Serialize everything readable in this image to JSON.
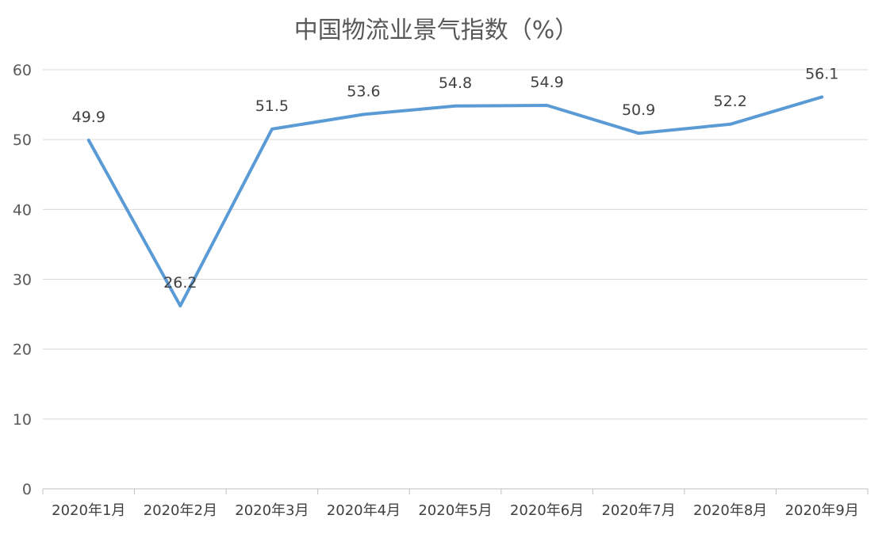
{
  "chart_data": {
    "type": "line",
    "title": "中国物流业景气指数（%）",
    "categories": [
      "2020年1月",
      "2020年2月",
      "2020年3月",
      "2020年4月",
      "2020年5月",
      "2020年6月",
      "2020年7月",
      "2020年8月",
      "2020年9月"
    ],
    "series": [
      {
        "values": [
          49.9,
          26.2,
          51.5,
          53.6,
          54.8,
          54.9,
          50.9,
          52.2,
          56.1
        ],
        "color": "#5b9bd5"
      }
    ],
    "data_labels": [
      "49.9",
      "26.2",
      "51.5",
      "53.6",
      "54.8",
      "54.9",
      "50.9",
      "52.2",
      "56.1"
    ],
    "ylim": [
      0,
      60
    ],
    "yticks": [
      0,
      10,
      20,
      30,
      40,
      50,
      60
    ],
    "xlabel": "",
    "ylabel": "",
    "grid": true,
    "legend": "none"
  }
}
